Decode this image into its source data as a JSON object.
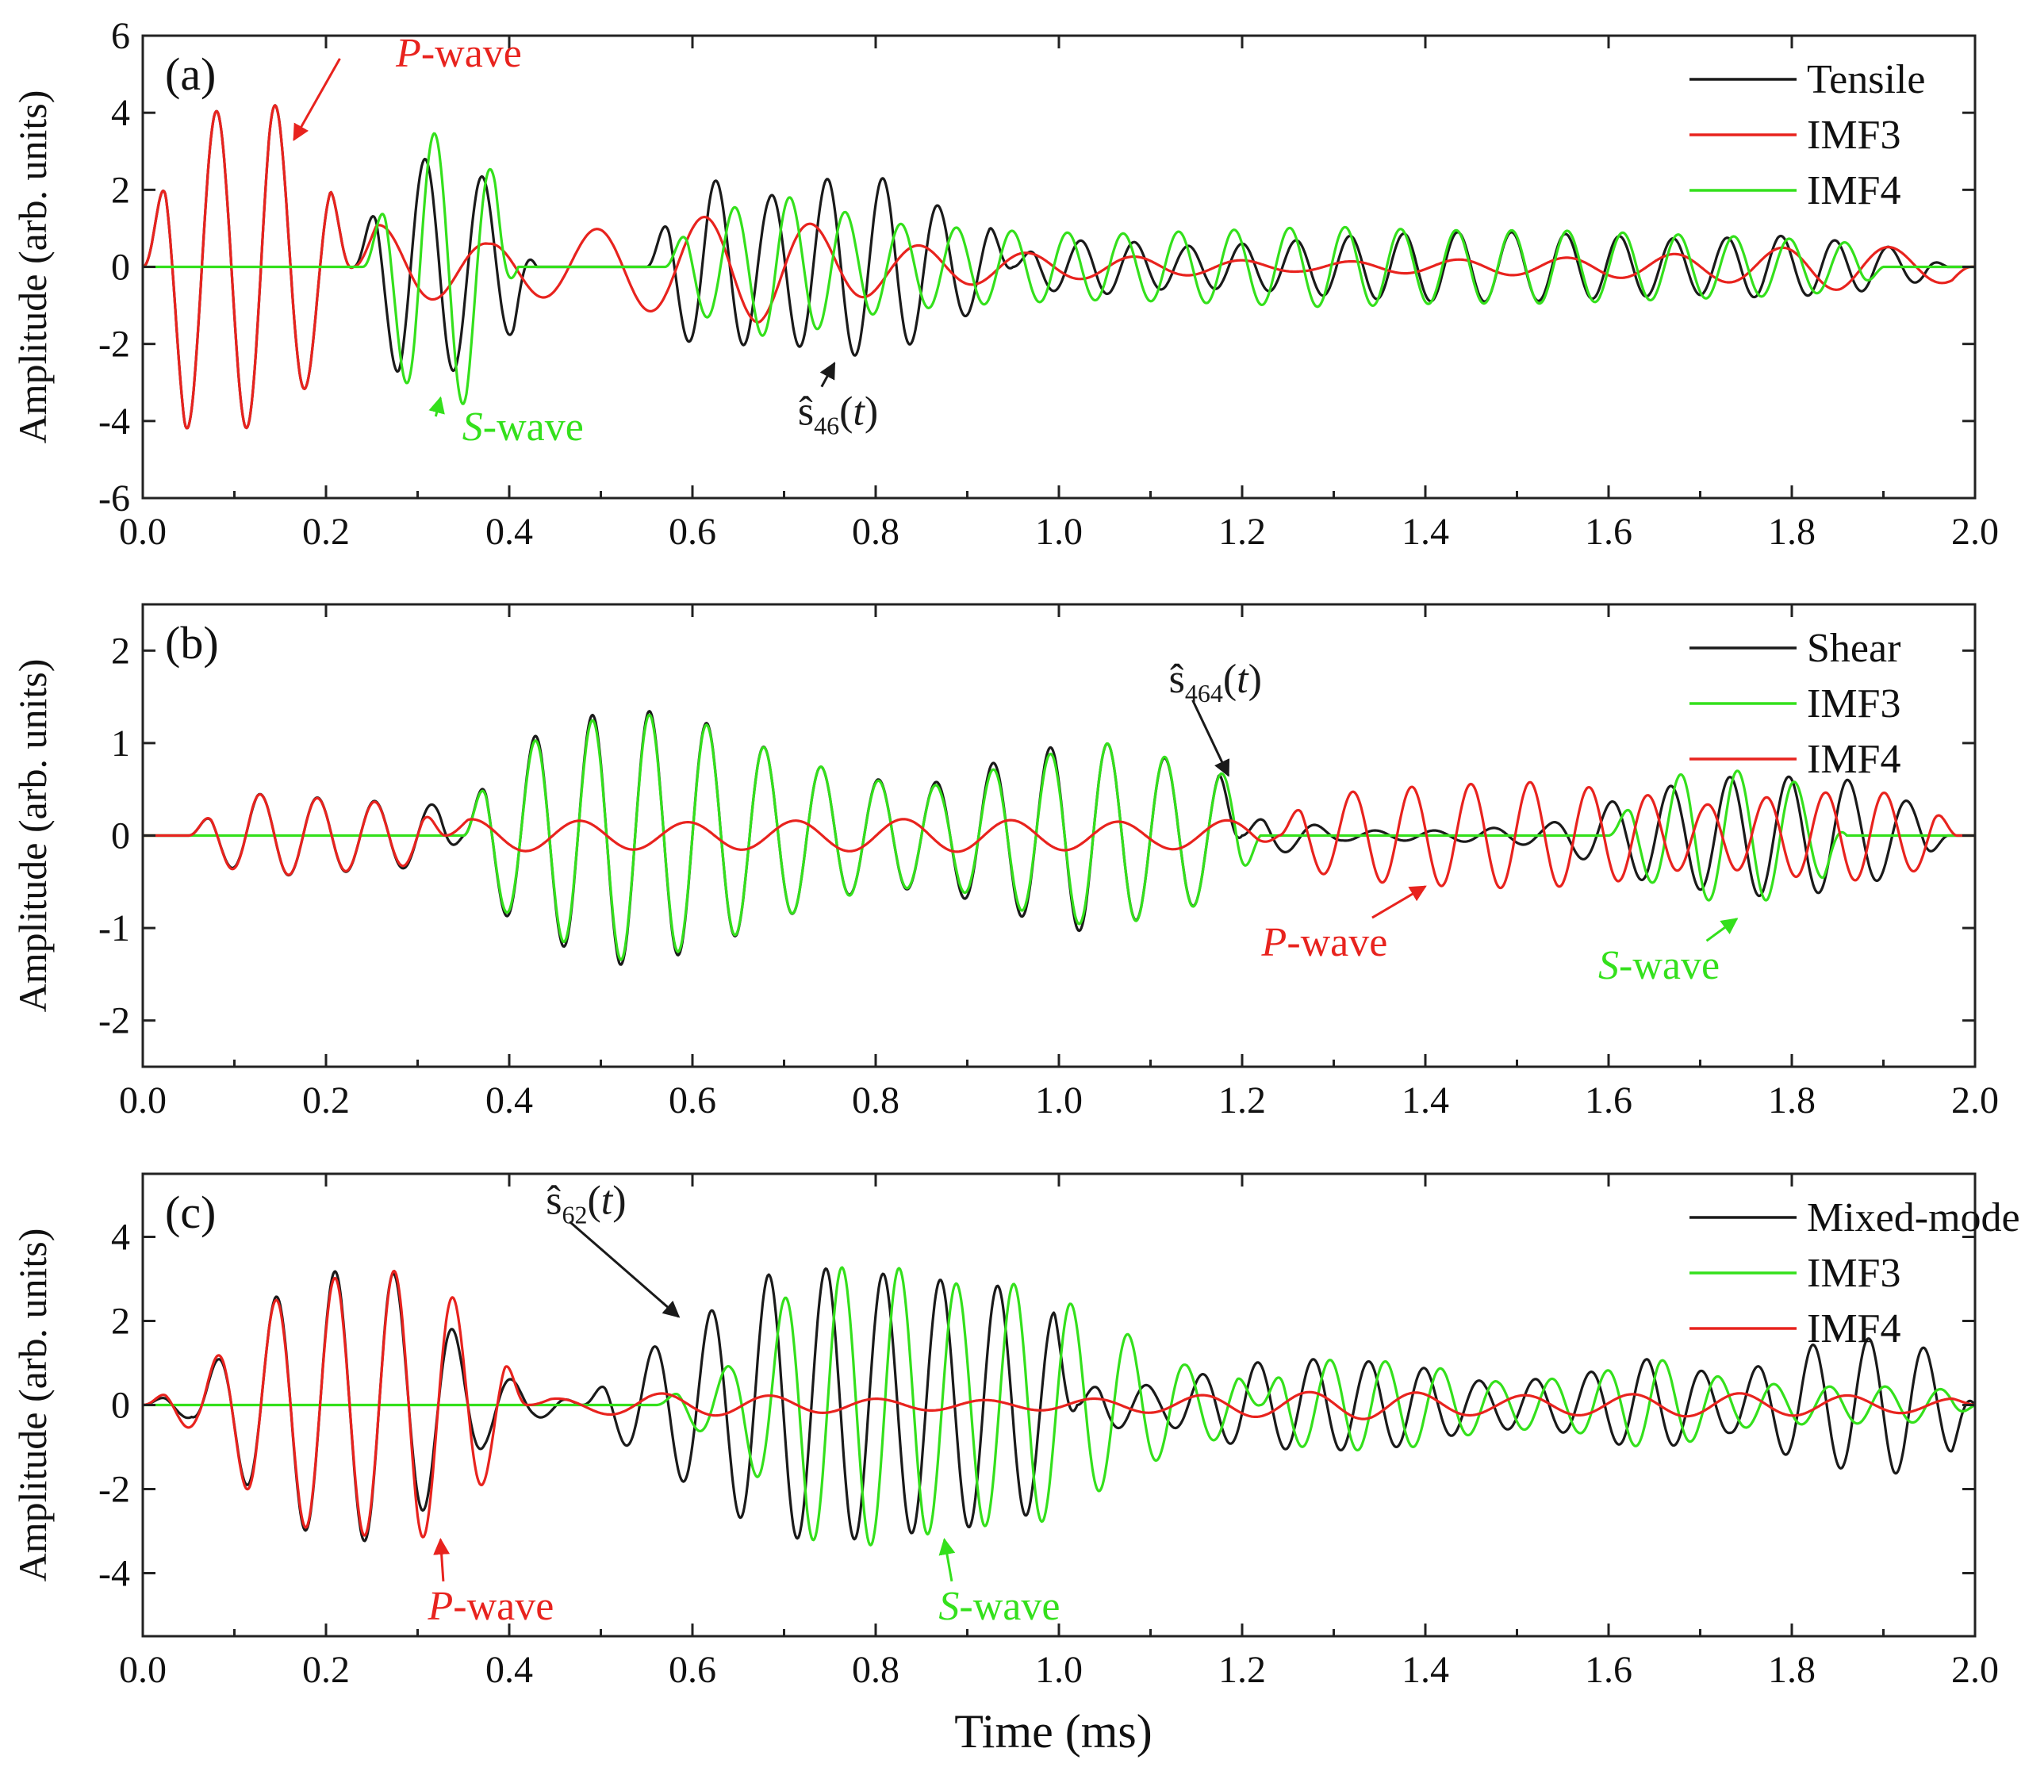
{
  "colors": {
    "black": "#1a1a1a",
    "red": "#e8231e",
    "green": "#34e01c"
  },
  "shared": {
    "xlabel": "Time (ms)",
    "ylabel": "Amplitude (arb. units)"
  },
  "chart_data": [
    {
      "type": "line",
      "panel_label": "(a)",
      "xlabel": "",
      "ylabel": "Amplitude (arb. units)",
      "xlim": [
        0.0,
        2.0
      ],
      "ylim": [
        -6,
        6
      ],
      "x_ticks": [
        "0.0",
        "0.2",
        "0.4",
        "0.6",
        "0.8",
        "1.0",
        "1.2",
        "1.4",
        "1.6",
        "1.8",
        "2.0"
      ],
      "y_ticks": [
        "6",
        "4",
        "2",
        "0",
        "-2",
        "-4",
        "-6"
      ],
      "y_tick_values": [
        6,
        4,
        2,
        0,
        -2,
        -4,
        -6
      ],
      "legend_position": "top-right",
      "series": [
        {
          "name": "Tensile",
          "color": "black",
          "waves": [
            {
              "t0": 0.0,
              "t1": 0.23,
              "f": 15.5,
              "A": 4.2,
              "amps": [
                0.3,
                1.0,
                0.95,
                1.05,
                0.7,
                0.3
              ]
            },
            {
              "t0": 0.23,
              "t1": 0.43,
              "f": 16,
              "A": 2.8,
              "amps": [
                0.4,
                1.0,
                1.0,
                0.8,
                0.4
              ]
            },
            {
              "t0": 0.55,
              "t1": 0.95,
              "f": 16.5,
              "A": 2.3,
              "amps": [
                0.5,
                1.0,
                0.8,
                1.0,
                1.0,
                0.6,
                0.4
              ]
            },
            {
              "t0": 0.95,
              "t1": 1.97,
              "f": 17,
              "A": 0.9,
              "amps": [
                0.6,
                0.8,
                0.6,
                0.7,
                0.9,
                1.0,
                1.0,
                0.9,
                0.8,
                0.9,
                0.7,
                0.3
              ]
            }
          ]
        },
        {
          "name": "IMF3",
          "color": "red",
          "waves": [
            {
              "t0": 0.0,
              "t1": 0.23,
              "f": 15.5,
              "A": 4.2,
              "amps": [
                0.3,
                1.0,
                0.95,
                1.05,
                0.7,
                0.3
              ]
            },
            {
              "t0": 0.23,
              "t1": 2.0,
              "f": 8.5,
              "A": 1.2,
              "amps": [
                1.0,
                0.5,
                0.9,
                1.2,
                0.5,
                0.3,
                0.2,
                0.1,
                0.15,
                0.2,
                0.3,
                0.5,
                0.3
              ]
            }
          ]
        },
        {
          "name": "IMF4",
          "color": "green",
          "waves": [
            {
              "t0": 0.24,
              "t1": 0.41,
              "f": 16,
              "A": 3.4,
              "amps": [
                0.3,
                1.0,
                1.05,
                0.4
              ]
            },
            {
              "t0": 0.57,
              "t1": 1.9,
              "f": 16.5,
              "A": 1.9,
              "amps": [
                0.5,
                1.0,
                0.6,
                0.5,
                0.45,
                0.5,
                0.55,
                0.5,
                0.5,
                0.45,
                0.4,
                0.3
              ]
            }
          ]
        }
      ],
      "annotations": [
        {
          "id": "a-pwave",
          "italic": "P",
          "rest": "-wave",
          "color": "red",
          "x": 0.345,
          "y": 5.2,
          "anchor": "middle",
          "arrow_to": [
            0.165,
            3.3
          ]
        },
        {
          "id": "a-swave",
          "italic": "S",
          "rest": "-wave",
          "color": "green",
          "x": 0.415,
          "y": -4.5,
          "anchor": "middle",
          "arrow_to": [
            0.325,
            -3.4
          ]
        },
        {
          "id": "a-shat",
          "shat_sub": "46",
          "color": "black",
          "x": 0.715,
          "y": -4.1,
          "anchor": "start",
          "arrow_to": [
            0.755,
            -2.5
          ]
        }
      ]
    },
    {
      "type": "line",
      "panel_label": "(b)",
      "xlabel": "",
      "ylabel": "Amplitude (arb. units)",
      "xlim": [
        0.0,
        2.0
      ],
      "ylim": [
        -2.5,
        2.5
      ],
      "x_ticks": [
        "0.0",
        "0.2",
        "0.4",
        "0.6",
        "0.8",
        "1.0",
        "1.2",
        "1.4",
        "1.6",
        "1.8",
        "2.0"
      ],
      "y_ticks": [
        "2",
        "1",
        "0",
        "-1",
        "-2"
      ],
      "y_tick_values": [
        2,
        1,
        0,
        -1,
        -2
      ],
      "legend_position": "top-right",
      "series": [
        {
          "name": "Shear",
          "color": "black",
          "waves": [
            {
              "t0": 0.05,
              "t1": 0.35,
              "f": 16,
              "A": 0.45,
              "amps": [
                0.4,
                1.0,
                0.9,
                0.8,
                0.7
              ]
            },
            {
              "t0": 0.35,
              "t1": 1.2,
              "f": 16,
              "A": 1.4,
              "amps": [
                0.4,
                0.8,
                1.0,
                0.9,
                0.65,
                0.45,
                0.4,
                0.6,
                0.75,
                0.6,
                0.45
              ]
            },
            {
              "t0": 1.2,
              "t1": 1.97,
              "f": 15.5,
              "A": 0.55,
              "amps": [
                0.5,
                0.1,
                0.1,
                0.2,
                0.9,
                1.2,
                1.1,
                0.4
              ]
            }
          ]
        },
        {
          "name": "IMF3",
          "color": "green",
          "waves": [
            {
              "t0": 0.35,
              "t1": 1.22,
              "f": 16,
              "A": 1.35,
              "amps": [
                0.4,
                0.8,
                1.0,
                0.9,
                0.65,
                0.45,
                0.4,
                0.6,
                0.75,
                0.6,
                0.4
              ]
            },
            {
              "t0": 1.6,
              "t1": 1.86,
              "f": 16,
              "A": 0.7,
              "amps": [
                0.4,
                1.0,
                1.0,
                0.5
              ]
            }
          ]
        },
        {
          "name": "IMF4",
          "color": "red",
          "waves": [
            {
              "t0": 0.05,
              "t1": 0.33,
              "f": 16,
              "A": 0.45,
              "amps": [
                0.4,
                1.0,
                0.9,
                0.8,
                0.6
              ]
            },
            {
              "t0": 0.33,
              "t1": 1.24,
              "f": 8.5,
              "A": 0.18,
              "amps": [
                1.0,
                0.9,
                0.8,
                0.9,
                1.0,
                0.9,
                0.8,
                1.0
              ]
            },
            {
              "t0": 1.24,
              "t1": 1.98,
              "f": 15.5,
              "A": 0.55,
              "amps": [
                0.6,
                0.9,
                1.0,
                1.05,
                0.9,
                0.6,
                0.8,
                0.9,
                0.5
              ]
            }
          ]
        }
      ],
      "annotations": [
        {
          "id": "b-shat",
          "shat_sub": "464",
          "color": "black",
          "x": 1.12,
          "y": 1.55,
          "anchor": "start",
          "arrow_to": [
            1.185,
            0.65
          ]
        },
        {
          "id": "b-pwave",
          "italic": "P",
          "rest": "-wave",
          "color": "red",
          "x": 1.29,
          "y": -1.3,
          "anchor": "middle",
          "arrow_to": [
            1.4,
            -0.55
          ]
        },
        {
          "id": "b-swave",
          "italic": "S",
          "rest": "-wave",
          "color": "green",
          "x": 1.655,
          "y": -1.55,
          "anchor": "middle",
          "arrow_to": [
            1.74,
            -0.9
          ]
        }
      ]
    },
    {
      "type": "line",
      "panel_label": "(c)",
      "xlabel": "Time (ms)",
      "ylabel": "Amplitude (arb. units)",
      "xlim": [
        0.0,
        2.0
      ],
      "ylim": [
        -5.5,
        5.5
      ],
      "x_ticks": [
        "0.0",
        "0.2",
        "0.4",
        "0.6",
        "0.8",
        "1.0",
        "1.2",
        "1.4",
        "1.6",
        "1.8",
        "2.0"
      ],
      "y_ticks": [
        "4",
        "2",
        "0",
        "-2",
        "-4"
      ],
      "y_tick_values": [
        4,
        2,
        0,
        -2,
        -4
      ],
      "legend_position": "top-right",
      "series": [
        {
          "name": "Mixed-mode",
          "color": "black",
          "waves": [
            {
              "t0": 0.0,
              "t1": 0.48,
              "f": 15.5,
              "A": 3.2,
              "amps": [
                0.05,
                0.1,
                0.55,
                0.9,
                1.0,
                1.02,
                0.7,
                0.3,
                0.1,
                0.05
              ]
            },
            {
              "t0": 0.48,
              "t1": 1.02,
              "f": 16,
              "A": 3.1,
              "amps": [
                0.1,
                0.4,
                0.7,
                1.0,
                1.05,
                1.0,
                0.95,
                0.9,
                0.6
              ]
            },
            {
              "t0": 1.02,
              "t1": 2.0,
              "f": 16.5,
              "A": 1.1,
              "amps": [
                0.6,
                0.4,
                0.9,
                1.0,
                0.9,
                0.5,
                0.6,
                1.0,
                0.6,
                1.3,
                1.5,
                0.8
              ]
            }
          ]
        },
        {
          "name": "IMF3",
          "color": "green",
          "waves": [
            {
              "t0": 0.56,
              "t1": 1.22,
              "f": 16,
              "A": 3.2,
              "amps": [
                0.05,
                0.3,
                1.0,
                1.05,
                0.9,
                0.9,
                0.6,
                0.3,
                0.2
              ]
            },
            {
              "t0": 1.22,
              "t1": 2.0,
              "f": 16.5,
              "A": 1.1,
              "amps": [
                0.8,
                1.0,
                0.9,
                0.5,
                0.6,
                1.0,
                0.5,
                0.4,
                0.4,
                0.3
              ]
            }
          ]
        },
        {
          "name": "IMF4",
          "color": "red",
          "waves": [
            {
              "t0": 0.0,
              "t1": 0.42,
              "f": 15.5,
              "A": 3.1,
              "amps": [
                0.05,
                0.2,
                0.7,
                0.95,
                1.0,
                1.05,
                0.7,
                0.2
              ]
            },
            {
              "t0": 0.42,
              "t1": 2.0,
              "f": 8.5,
              "A": 0.28,
              "amps": [
                0.4,
                1.0,
                0.8,
                0.5,
                0.4,
                0.6,
                1.0,
                1.2,
                0.8,
                0.9,
                1.0,
                0.8,
                0.5
              ]
            }
          ]
        }
      ],
      "annotations": [
        {
          "id": "c-shat",
          "shat_sub": "62",
          "color": "black",
          "x": 0.44,
          "y": 4.55,
          "anchor": "start",
          "arrow_to": [
            0.585,
            2.1
          ]
        },
        {
          "id": "c-pwave",
          "italic": "P",
          "rest": "-wave",
          "color": "red",
          "x": 0.38,
          "y": -5.1,
          "anchor": "middle",
          "arrow_to": [
            0.325,
            -3.2
          ]
        },
        {
          "id": "c-swave",
          "italic": "S",
          "rest": "-wave",
          "color": "green",
          "x": 0.935,
          "y": -5.1,
          "anchor": "middle",
          "arrow_to": [
            0.875,
            -3.2
          ]
        }
      ]
    }
  ]
}
